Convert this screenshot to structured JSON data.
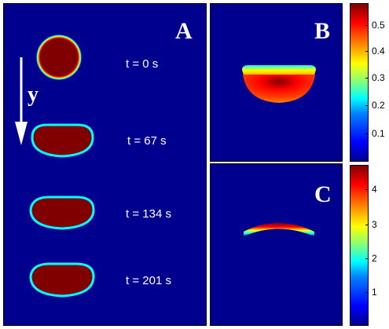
{
  "panel_a": {
    "letter": "A",
    "direction_label": "y",
    "frames": [
      {
        "time": "t = 0 s"
      },
      {
        "time": "t = 67 s"
      },
      {
        "time": "t = 134 s"
      },
      {
        "time": "t = 201 s"
      }
    ]
  },
  "panel_b": {
    "letter": "B",
    "colorbar_ticks": [
      "0.5",
      "0.4",
      "0.3",
      "0.2",
      "0.1"
    ]
  },
  "panel_c": {
    "letter": "C",
    "colorbar_ticks": [
      "4",
      "3",
      "2",
      "1"
    ]
  },
  "colors": {
    "background": "#00008f",
    "body": "#800000",
    "edge": "#00ffff"
  }
}
